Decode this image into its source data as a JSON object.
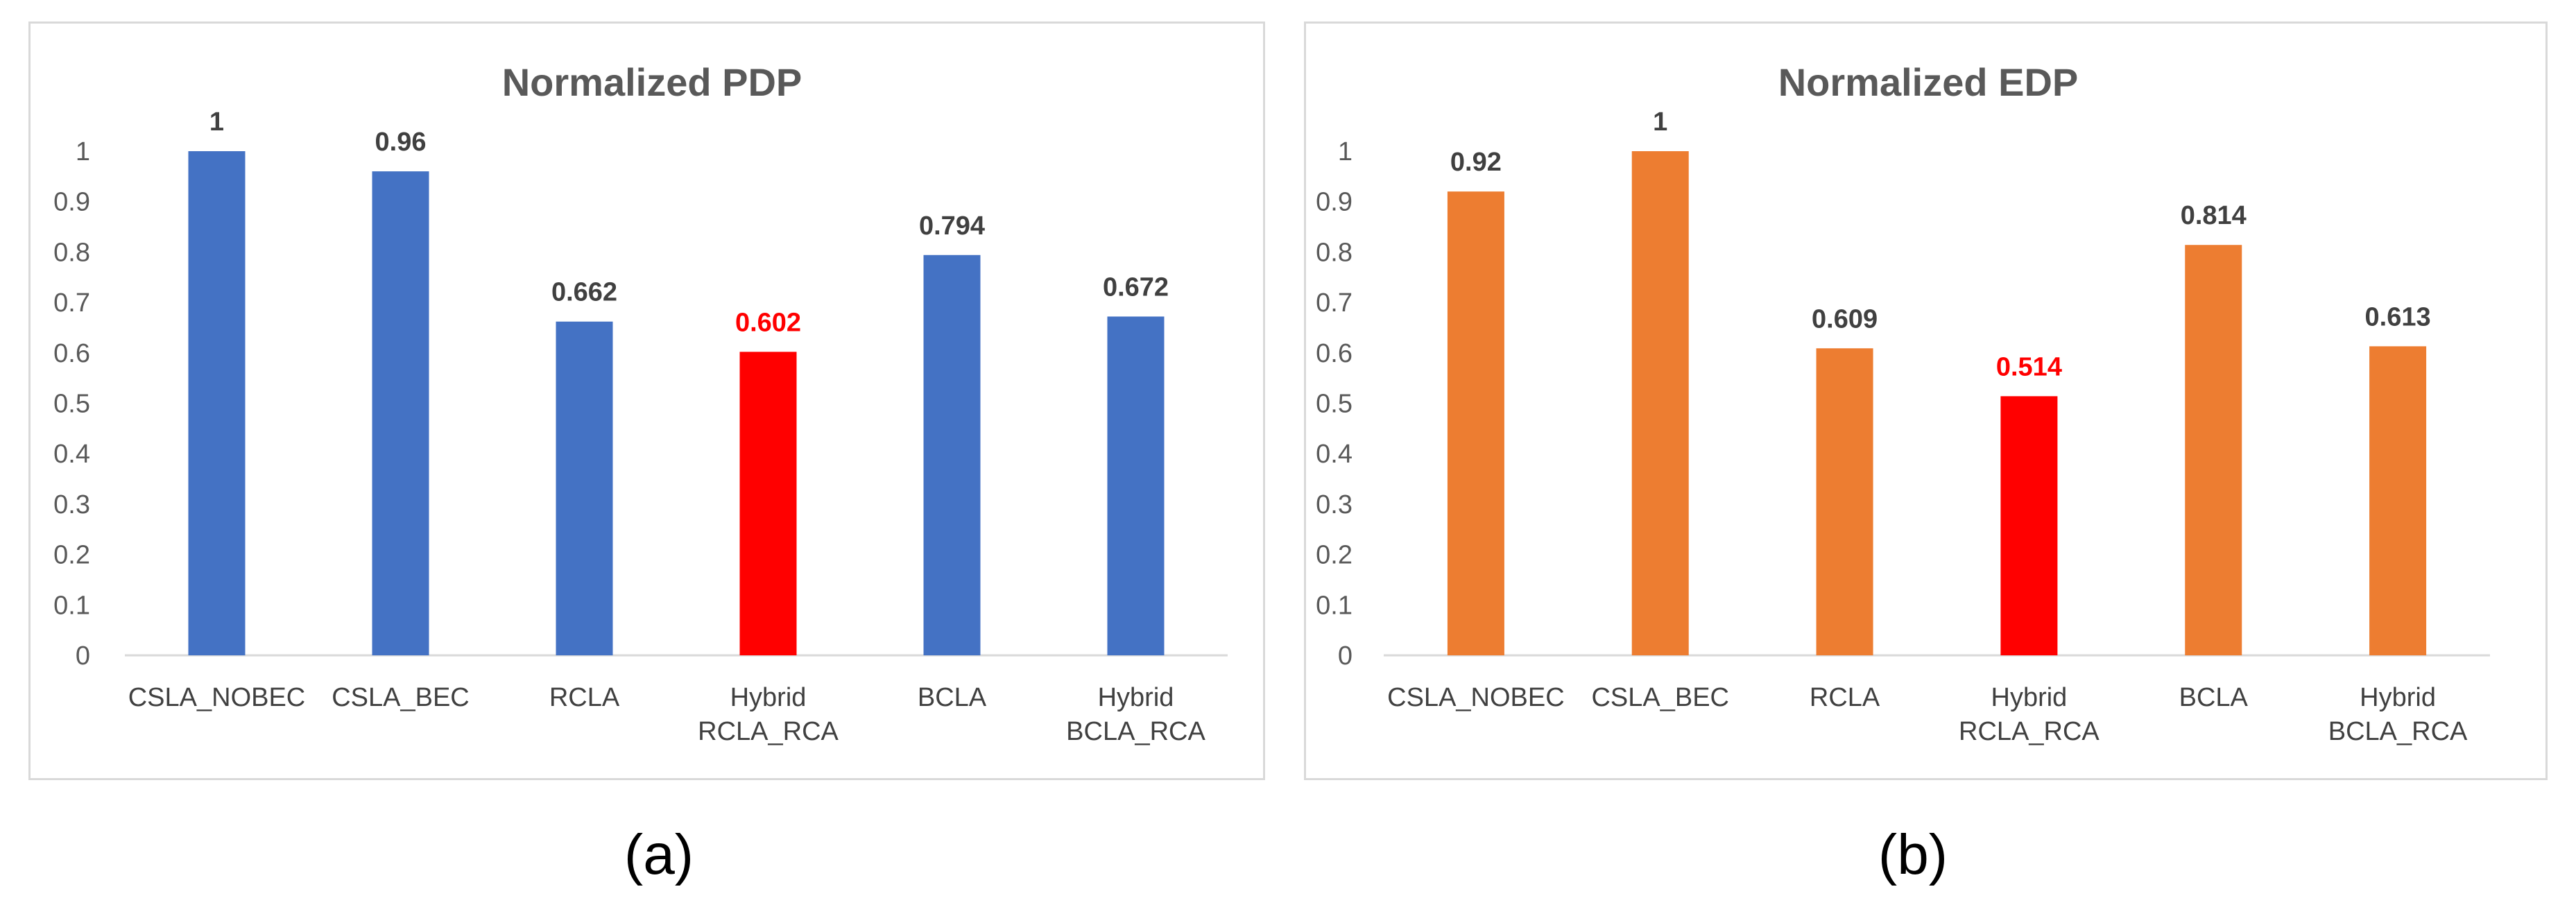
{
  "chart_data": [
    {
      "type": "bar",
      "title": "Normalized PDP",
      "xlabel": "",
      "ylabel": "",
      "ylim": [
        0,
        1
      ],
      "yticks": [
        "0",
        "0.1",
        "0.2",
        "0.3",
        "0.4",
        "0.5",
        "0.6",
        "0.7",
        "0.8",
        "0.9",
        "1"
      ],
      "grid": false,
      "legend": "none",
      "categories": [
        [
          "CSLA_NOBEC"
        ],
        [
          "CSLA_BEC"
        ],
        [
          "RCLA"
        ],
        [
          "Hybrid",
          "RCLA_RCA"
        ],
        [
          "BCLA"
        ],
        [
          "Hybrid",
          "BCLA_RCA"
        ]
      ],
      "values": [
        1,
        0.96,
        0.662,
        0.602,
        0.794,
        0.672
      ],
      "labels": [
        "1",
        "0.96",
        "0.662",
        "0.602",
        "0.794",
        "0.672"
      ],
      "bar_colors": [
        "#4472c4",
        "#4472c4",
        "#4472c4",
        "#ff0000",
        "#4472c4",
        "#4472c4"
      ],
      "label_colors": [
        "#404040",
        "#404040",
        "#404040",
        "#ff0000",
        "#404040",
        "#404040"
      ]
    },
    {
      "type": "bar",
      "title": "Normalized EDP",
      "xlabel": "",
      "ylabel": "",
      "ylim": [
        0,
        1
      ],
      "yticks": [
        "0",
        "0.1",
        "0.2",
        "0.3",
        "0.4",
        "0.5",
        "0.6",
        "0.7",
        "0.8",
        "0.9",
        "1"
      ],
      "grid": false,
      "legend": "none",
      "categories": [
        [
          "CSLA_NOBEC"
        ],
        [
          "CSLA_BEC"
        ],
        [
          "RCLA"
        ],
        [
          "Hybrid",
          "RCLA_RCA"
        ],
        [
          "BCLA"
        ],
        [
          "Hybrid",
          "BCLA_RCA"
        ]
      ],
      "values": [
        0.92,
        1,
        0.609,
        0.514,
        0.814,
        0.613
      ],
      "labels": [
        "0.92",
        "1",
        "0.609",
        "0.514",
        "0.814",
        "0.613"
      ],
      "bar_colors": [
        "#ed7d31",
        "#ed7d31",
        "#ed7d31",
        "#ff0000",
        "#ed7d31",
        "#ed7d31"
      ],
      "label_colors": [
        "#404040",
        "#404040",
        "#404040",
        "#ff0000",
        "#404040",
        "#404040"
      ]
    }
  ],
  "captions": {
    "a": "(a)",
    "b": "(b)"
  }
}
